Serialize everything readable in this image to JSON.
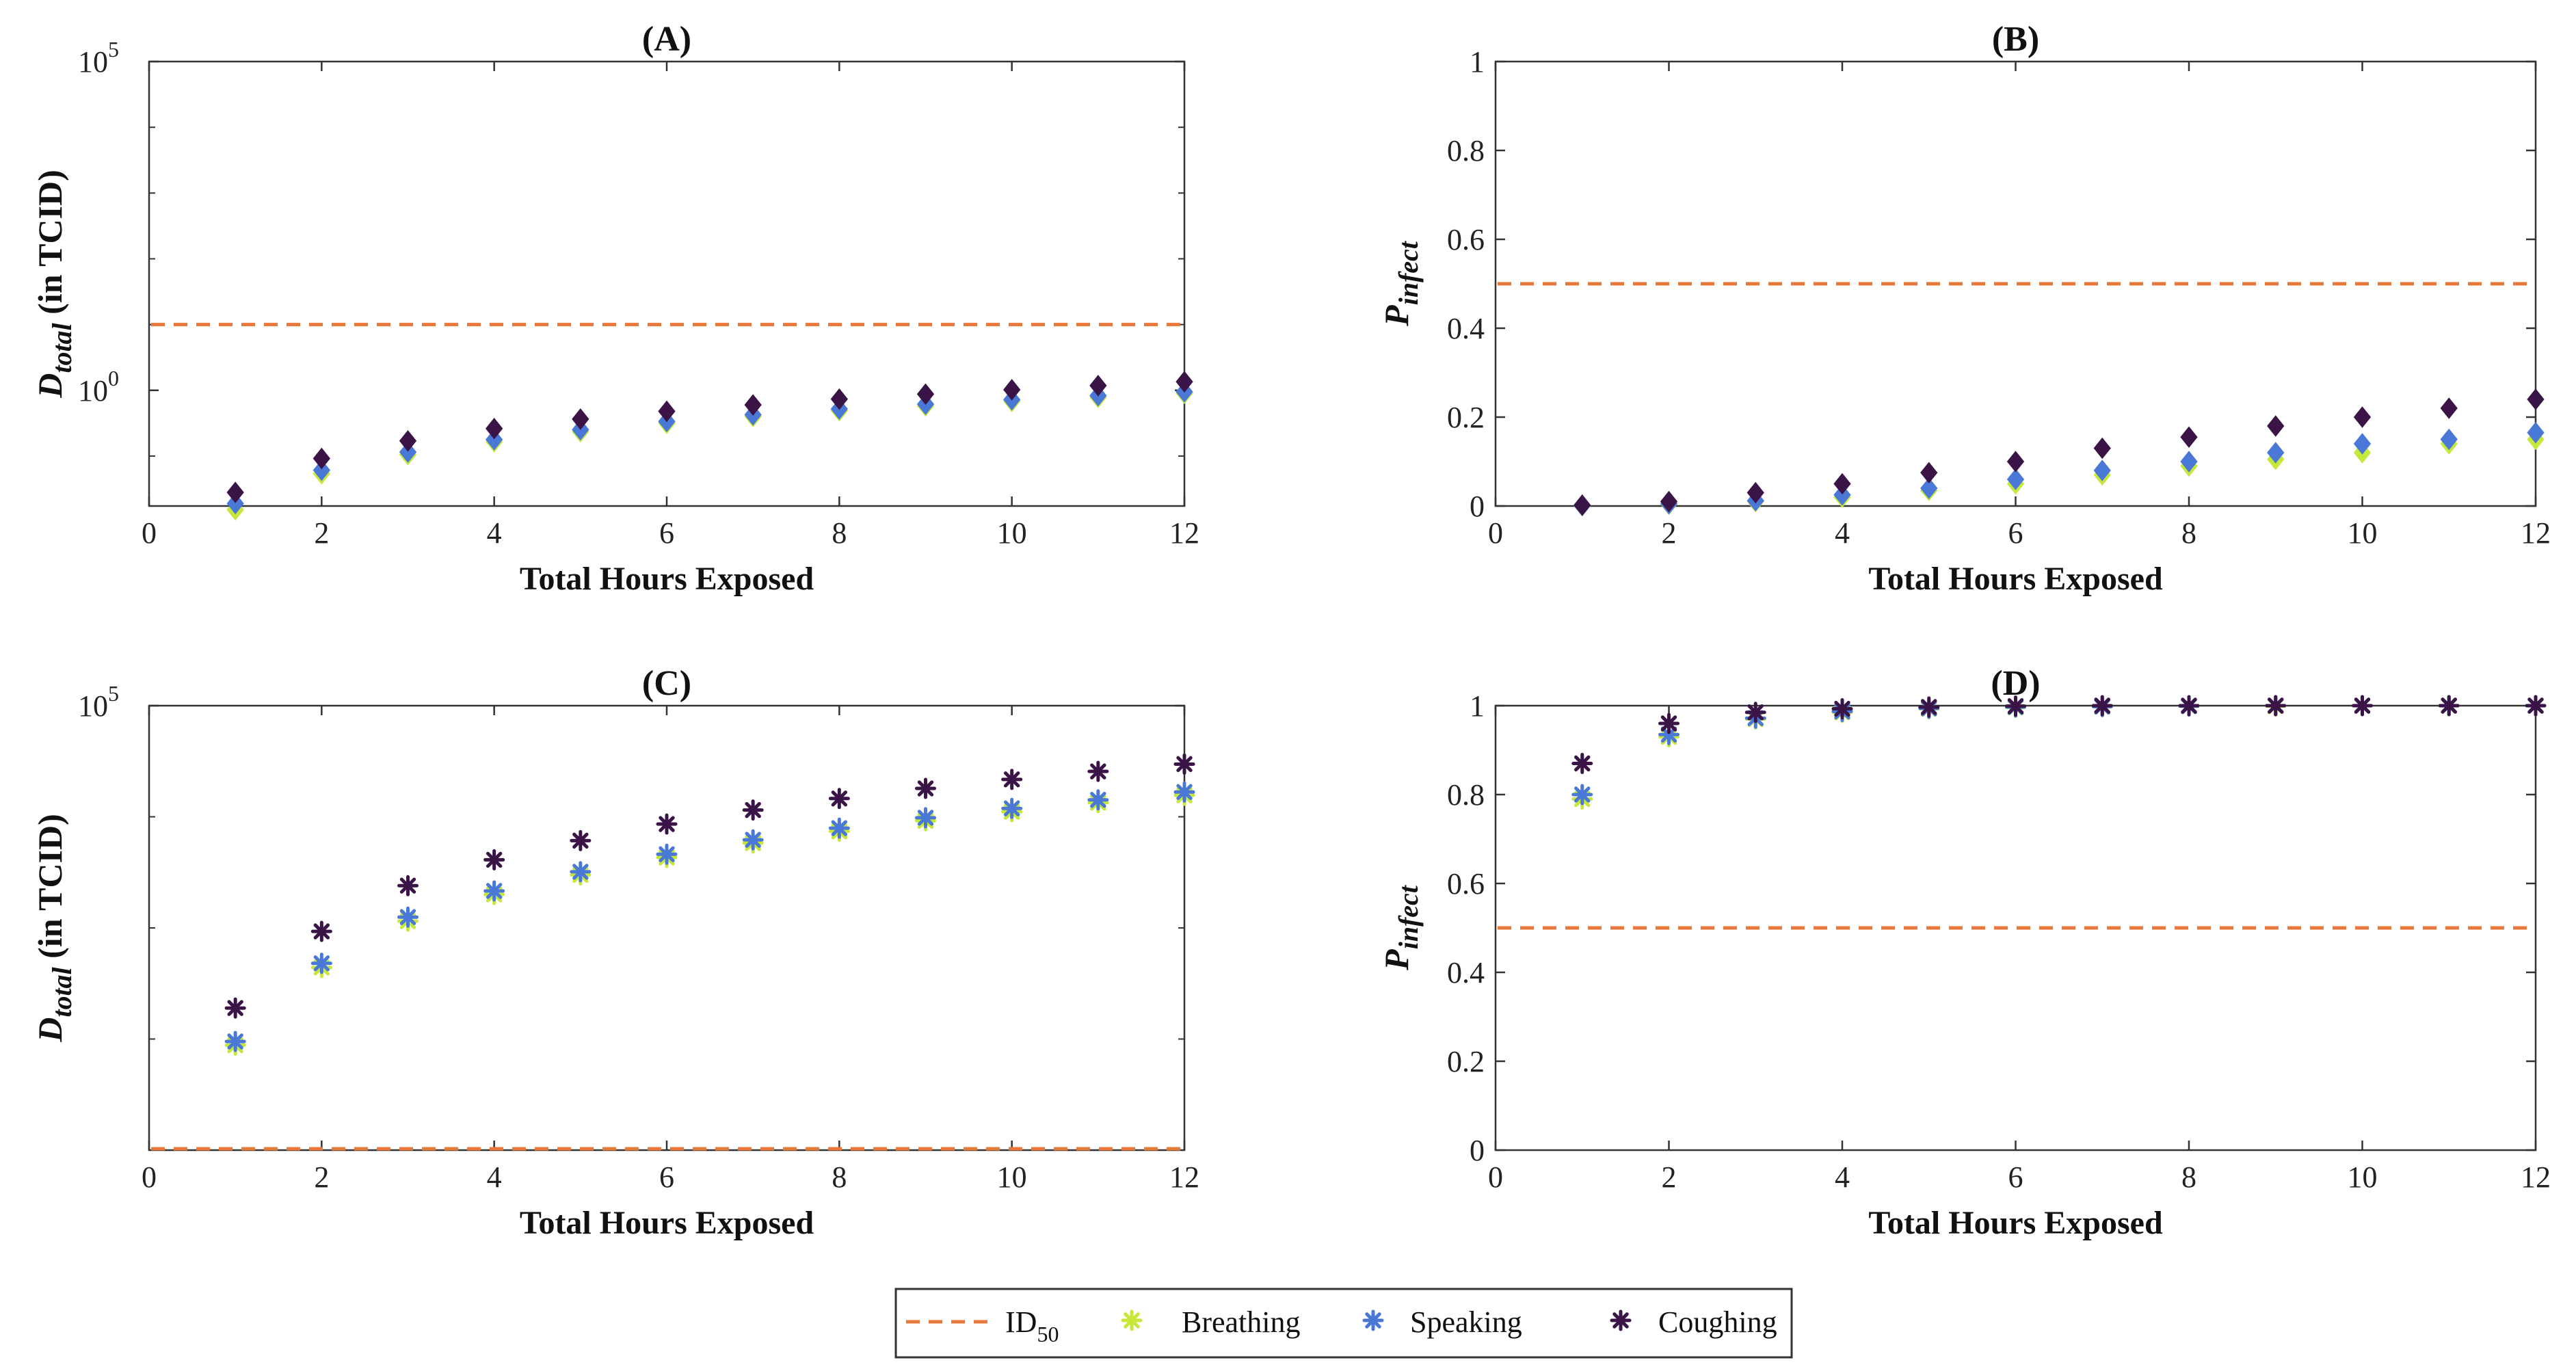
{
  "colors": {
    "id50": "#E8773A",
    "breathing": "#C6E83A",
    "speaking": "#4A78D6",
    "coughing": "#3A1446"
  },
  "legend": {
    "id50_main": "ID",
    "id50_sub": "50",
    "breathing": "Breathing",
    "speaking": "Speaking",
    "coughing": "Coughing"
  },
  "chart_data": [
    {
      "id": "A",
      "title": "(A)",
      "type": "scatter",
      "marker": "diamond",
      "yscale": "log",
      "ylabel_main": "D",
      "ylabel_sub": "total",
      "ylabel_rest": " (in TCID)",
      "xlabel": "Total Hours Exposed",
      "xlim": [
        0,
        12
      ],
      "xticks": [
        0,
        2,
        4,
        6,
        8,
        10,
        12
      ],
      "ylim": [
        0.0174,
        100000
      ],
      "yticks": [
        {
          "value": 1,
          "base": "10",
          "exp": "0"
        },
        {
          "value": 100000,
          "base": "10",
          "exp": "5"
        }
      ],
      "reference_line": {
        "name": "ID50",
        "value": 10
      },
      "x": [
        1,
        2,
        3,
        4,
        5,
        6,
        7,
        8,
        9,
        10,
        11,
        12
      ],
      "series": [
        {
          "name": "Breathing",
          "values": [
            0.0153,
            0.054,
            0.105,
            0.165,
            0.235,
            0.315,
            0.4,
            0.49,
            0.58,
            0.68,
            0.78,
            0.9
          ]
        },
        {
          "name": "Speaking",
          "values": [
            0.019,
            0.061,
            0.115,
            0.178,
            0.252,
            0.336,
            0.425,
            0.52,
            0.615,
            0.72,
            0.83,
            0.95
          ]
        },
        {
          "name": "Coughing",
          "values": [
            0.028,
            0.092,
            0.17,
            0.262,
            0.365,
            0.48,
            0.6,
            0.735,
            0.875,
            1.02,
            1.18,
            1.35
          ]
        }
      ]
    },
    {
      "id": "B",
      "title": "(B)",
      "type": "scatter",
      "marker": "diamond",
      "yscale": "linear",
      "ylabel_main": "P",
      "ylabel_sub": "infect",
      "ylabel_rest": "",
      "xlabel": "Total Hours Exposed",
      "xlim": [
        0,
        12
      ],
      "xticks": [
        0,
        2,
        4,
        6,
        8,
        10,
        12
      ],
      "ylim": [
        0,
        1
      ],
      "yticks": [
        {
          "value": 0,
          "label": "0"
        },
        {
          "value": 0.2,
          "label": "0.2"
        },
        {
          "value": 0.4,
          "label": "0.4"
        },
        {
          "value": 0.6,
          "label": "0.6"
        },
        {
          "value": 0.8,
          "label": "0.8"
        },
        {
          "value": 1,
          "label": "1"
        }
      ],
      "reference_line": {
        "name": "ID50",
        "value": 0.5
      },
      "x": [
        1,
        2,
        3,
        4,
        5,
        6,
        7,
        8,
        9,
        10,
        11,
        12
      ],
      "series": [
        {
          "name": "Breathing",
          "values": [
            0.001,
            0.004,
            0.01,
            0.02,
            0.035,
            0.05,
            0.07,
            0.09,
            0.105,
            0.12,
            0.14,
            0.15
          ]
        },
        {
          "name": "Speaking",
          "values": [
            0.001,
            0.005,
            0.012,
            0.025,
            0.04,
            0.06,
            0.08,
            0.1,
            0.12,
            0.14,
            0.15,
            0.165
          ]
        },
        {
          "name": "Coughing",
          "values": [
            0.002,
            0.01,
            0.03,
            0.05,
            0.075,
            0.1,
            0.13,
            0.155,
            0.18,
            0.2,
            0.22,
            0.24
          ]
        }
      ]
    },
    {
      "id": "C",
      "title": "(C)",
      "type": "scatter",
      "marker": "asterisk",
      "yscale": "log",
      "ylabel_main": "D",
      "ylabel_sub": "total",
      "ylabel_rest": " (in TCID)",
      "xlabel": "Total Hours Exposed",
      "xlim": [
        0,
        12
      ],
      "xticks": [
        0,
        2,
        4,
        6,
        8,
        10,
        12
      ],
      "ylim": [
        10,
        100000
      ],
      "yticks": [
        {
          "value": 100000,
          "base": "10",
          "exp": "5"
        }
      ],
      "reference_line": {
        "name": "ID50",
        "value": 10
      },
      "x": [
        1,
        2,
        3,
        4,
        5,
        6,
        7,
        8,
        9,
        10,
        11,
        12
      ],
      "series": [
        {
          "name": "Breathing",
          "values": [
            88,
            440,
            1150,
            2000,
            3000,
            4300,
            5800,
            7400,
            9200,
            11100,
            13400,
            15600
          ]
        },
        {
          "name": "Speaking",
          "values": [
            95,
            480,
            1250,
            2150,
            3200,
            4600,
            6200,
            7900,
            9800,
            11900,
            14200,
            16700
          ]
        },
        {
          "name": "Coughing",
          "values": [
            190,
            930,
            2400,
            4100,
            6100,
            8600,
            11500,
            14600,
            18000,
            21700,
            25600,
            29800
          ]
        }
      ]
    },
    {
      "id": "D",
      "title": "(D)",
      "type": "scatter",
      "marker": "asterisk",
      "yscale": "linear",
      "ylabel_main": "P",
      "ylabel_sub": "infect",
      "ylabel_rest": "",
      "xlabel": "Total Hours Exposed",
      "xlim": [
        0,
        12
      ],
      "xticks": [
        0,
        2,
        4,
        6,
        8,
        10,
        12
      ],
      "ylim": [
        0,
        1
      ],
      "yticks": [
        {
          "value": 0,
          "label": "0"
        },
        {
          "value": 0.2,
          "label": "0.2"
        },
        {
          "value": 0.4,
          "label": "0.4"
        },
        {
          "value": 0.6,
          "label": "0.6"
        },
        {
          "value": 0.8,
          "label": "0.8"
        },
        {
          "value": 1,
          "label": "1"
        }
      ],
      "reference_line": {
        "name": "ID50",
        "value": 0.5
      },
      "x": [
        1,
        2,
        3,
        4,
        5,
        6,
        7,
        8,
        9,
        10,
        11,
        12
      ],
      "series": [
        {
          "name": "Breathing",
          "values": [
            0.79,
            0.93,
            0.97,
            0.985,
            0.993,
            0.996,
            0.998,
            0.999,
            0.999,
            1.0,
            1.0,
            1.0
          ]
        },
        {
          "name": "Speaking",
          "values": [
            0.8,
            0.935,
            0.972,
            0.987,
            0.994,
            0.997,
            0.998,
            0.999,
            1.0,
            1.0,
            1.0,
            1.0
          ]
        },
        {
          "name": "Coughing",
          "values": [
            0.87,
            0.96,
            0.985,
            0.993,
            0.997,
            0.999,
            1.0,
            1.0,
            1.0,
            1.0,
            1.0,
            1.0
          ]
        }
      ]
    }
  ]
}
